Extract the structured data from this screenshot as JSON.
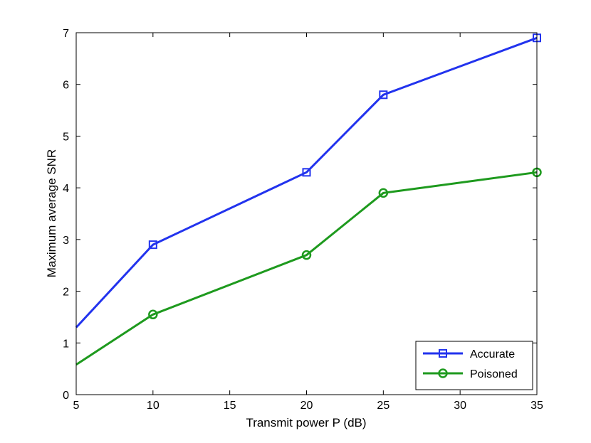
{
  "chart_data": {
    "type": "line",
    "title": "",
    "xlabel": "Transmit power P (dB)",
    "ylabel": "Maximum average SNR",
    "xlim": [
      5,
      35
    ],
    "ylim": [
      0,
      7
    ],
    "xticks": [
      5,
      10,
      15,
      20,
      25,
      30,
      35
    ],
    "yticks": [
      0,
      1,
      2,
      3,
      4,
      5,
      6,
      7
    ],
    "grid": false,
    "legend_position": "bottom-right",
    "series": [
      {
        "name": "Accurate",
        "color": "#2233ee",
        "marker": "square",
        "x": [
          5,
          10,
          20,
          25,
          35
        ],
        "y": [
          1.3,
          2.9,
          4.3,
          5.8,
          6.9
        ],
        "marker_x": [
          10,
          20,
          25,
          35
        ]
      },
      {
        "name": "Poisoned",
        "color": "#1e9a1e",
        "marker": "circle",
        "x": [
          5,
          10,
          20,
          25,
          35
        ],
        "y": [
          0.58,
          1.55,
          2.7,
          3.9,
          4.3
        ],
        "marker_x": [
          10,
          20,
          25,
          35
        ]
      }
    ]
  }
}
